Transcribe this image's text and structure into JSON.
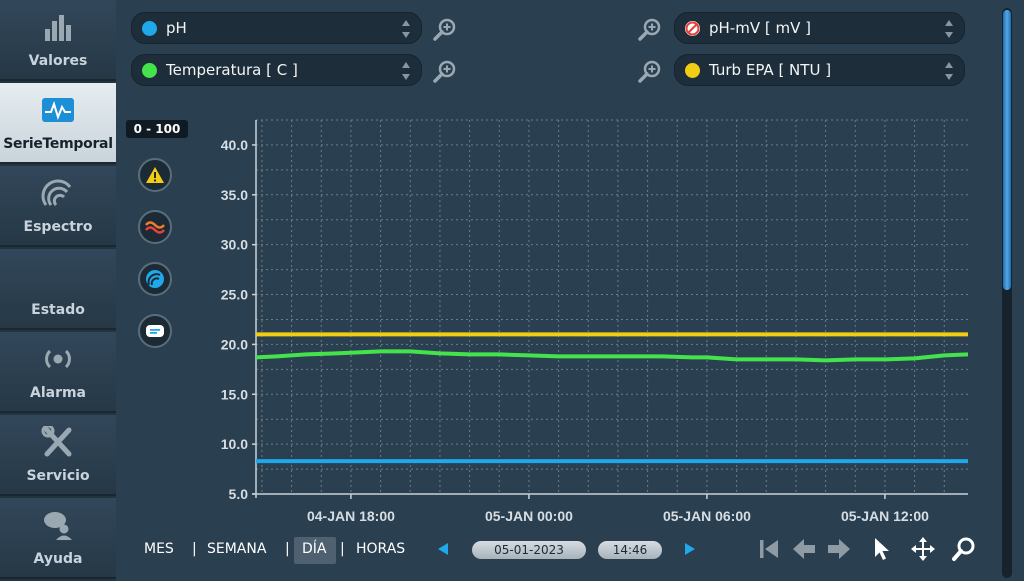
{
  "sidebar": {
    "items": [
      {
        "label": "Valores",
        "icon": "bar-chart-icon",
        "active": false
      },
      {
        "label": "SerieTemporal",
        "icon": "time-series-icon",
        "active": true
      },
      {
        "label": "Espectro",
        "icon": "spectrum-icon",
        "active": false
      },
      {
        "label": "Estado",
        "icon": "status-icon",
        "active": false
      },
      {
        "label": "Alarma",
        "icon": "alarm-icon",
        "active": false
      },
      {
        "label": "Servicio",
        "icon": "tools-icon",
        "active": false
      },
      {
        "label": "Ayuda",
        "icon": "help-icon",
        "active": false
      }
    ]
  },
  "selectors": {
    "ph": {
      "label": "pH",
      "color": "#1fa8ea"
    },
    "temperatura": {
      "label": "Temperatura [ C ]",
      "color": "#45e34b"
    },
    "ph_mv": {
      "label": "pH-mV [ mV ]",
      "color": "#e8413a",
      "disabled": true
    },
    "turb": {
      "label": "Turb EPA [ NTU ]",
      "color": "#f2cd13"
    }
  },
  "range_badge": "0 - 100",
  "tools": [
    "warning-icon",
    "waves-icon",
    "spectrum-icon",
    "comment-icon"
  ],
  "periods": {
    "mes": "MES",
    "semana": "SEMANA",
    "dia": "DÍA",
    "horas": "HORAS",
    "selected": "DÍA",
    "sep": "|"
  },
  "date_value": "05-01-2023",
  "time_value": "14:46",
  "chart_data": {
    "type": "line",
    "y_ticks": [
      "40.0",
      "35.0",
      "30.0",
      "25.0",
      "20.0",
      "15.0",
      "10.0",
      "5.0"
    ],
    "ylim": [
      5,
      42.5
    ],
    "x_tick_labels": [
      "04-JAN 18:00",
      "05-JAN 00:00",
      "05-JAN 06:00",
      "05-JAN 12:00"
    ],
    "x_range_hours": [
      14.8,
      38.8
    ],
    "x_tick_hours": [
      18,
      24,
      30,
      36
    ],
    "grid": true,
    "series": [
      {
        "color": "#f2cd13",
        "x": [
          14.8,
          17,
          20,
          23,
          26,
          29,
          32,
          35,
          38.8
        ],
        "y": [
          21.0,
          21.0,
          21.0,
          21.0,
          21.0,
          21.0,
          21.0,
          21.0,
          21.0
        ]
      },
      {
        "color": "#45e34b",
        "x": [
          14.8,
          15.5,
          16.5,
          17.5,
          19,
          20,
          21,
          22,
          23,
          24,
          25,
          26,
          27,
          28,
          28.5,
          29.5,
          30,
          31,
          32,
          33,
          34,
          35,
          36,
          37,
          38,
          38.8
        ],
        "y": [
          18.7,
          18.8,
          19.0,
          19.1,
          19.3,
          19.3,
          19.1,
          19.0,
          19.0,
          18.9,
          18.8,
          18.8,
          18.8,
          18.8,
          18.8,
          18.7,
          18.7,
          18.5,
          18.5,
          18.5,
          18.4,
          18.5,
          18.5,
          18.6,
          18.9,
          19.0
        ]
      },
      {
        "color": "#1fa8ea",
        "x": [
          14.8,
          20,
          26,
          32,
          38.8
        ],
        "y": [
          8.3,
          8.3,
          8.3,
          8.3,
          8.3
        ]
      }
    ]
  }
}
